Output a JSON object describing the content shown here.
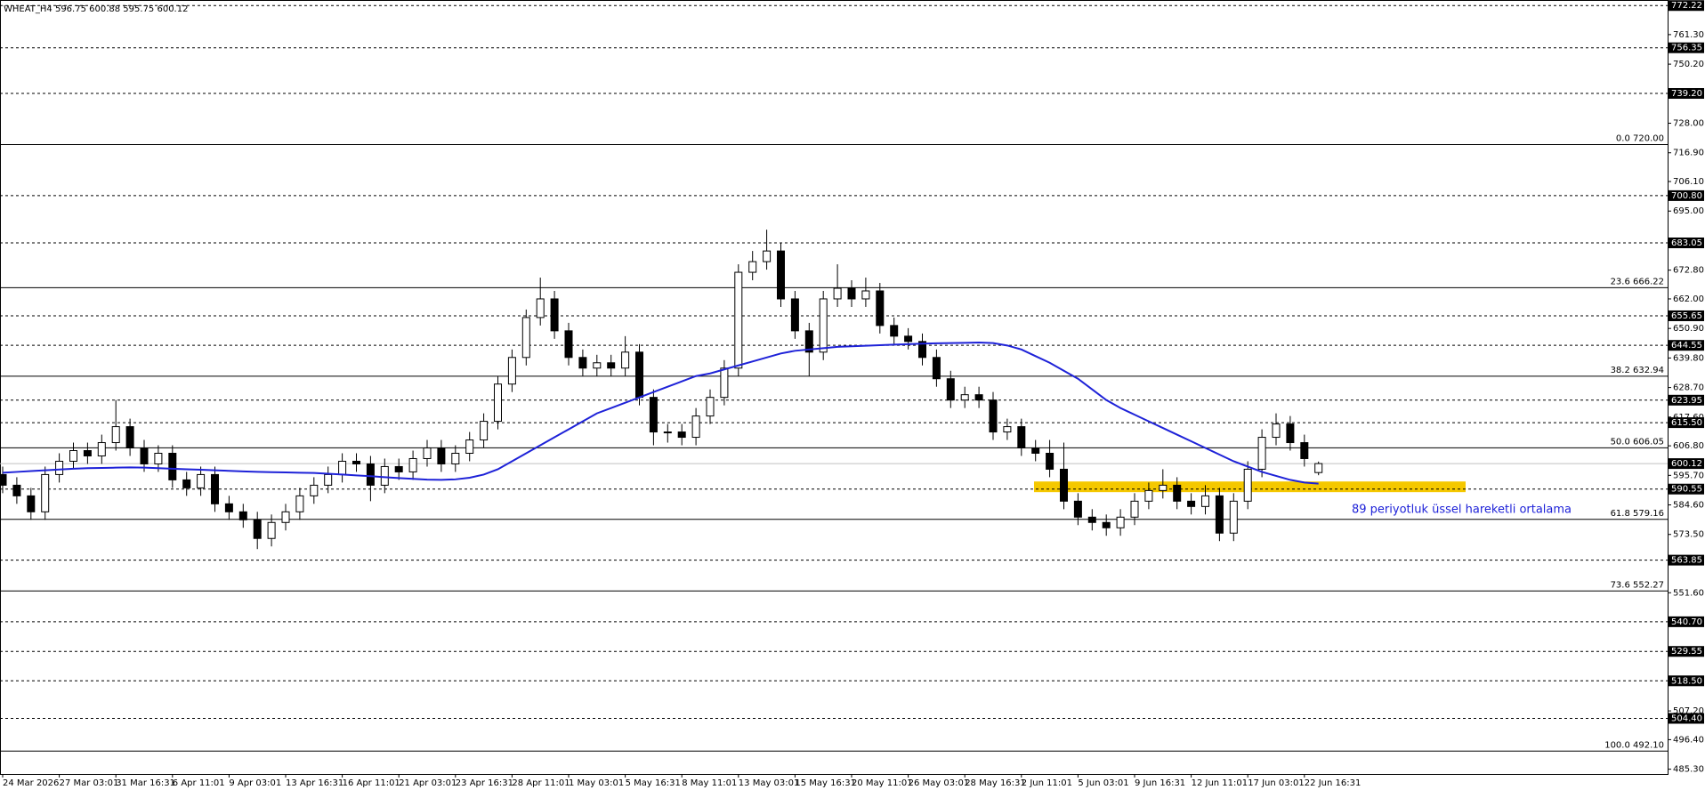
{
  "chart_data": {
    "type": "candlestick",
    "title": "WHEAT_H4  596.75 600.88 595.75 600.12",
    "annotation": "89 periyotluk üssel hareketli ortalama",
    "ylim": [
      483.5,
      774.3
    ],
    "yticks": [
      {
        "value": 485.3,
        "label": "485.30"
      },
      {
        "value": 496.4,
        "label": "496.40"
      },
      {
        "value": 507.2,
        "label": "507.20"
      },
      {
        "value": 551.6,
        "label": "551.60"
      },
      {
        "value": 573.5,
        "label": "573.50"
      },
      {
        "value": 584.6,
        "label": "584.60"
      },
      {
        "value": 595.7,
        "label": "595.70"
      },
      {
        "value": 606.8,
        "label": "606.80"
      },
      {
        "value": 617.6,
        "label": "617.60"
      },
      {
        "value": 628.7,
        "label": "628.70"
      },
      {
        "value": 639.8,
        "label": "639.80"
      },
      {
        "value": 650.9,
        "label": "650.90"
      },
      {
        "value": 662,
        "label": "662.00"
      },
      {
        "value": 672.8,
        "label": "672.80"
      },
      {
        "value": 695,
        "label": "695.00"
      },
      {
        "value": 706.1,
        "label": "706.10"
      },
      {
        "value": 716.9,
        "label": "716.90"
      },
      {
        "value": 728,
        "label": "728.00"
      },
      {
        "value": 750.2,
        "label": "750.20"
      },
      {
        "value": 761.3,
        "label": "761.30"
      }
    ],
    "hlines": [
      {
        "value": 772.22,
        "label": "772.22"
      },
      {
        "value": 756.35,
        "label": "756.35"
      },
      {
        "value": 739.2,
        "label": "739.20"
      },
      {
        "value": 700.8,
        "label": "700.80"
      },
      {
        "value": 683.05,
        "label": "683.05"
      },
      {
        "value": 655.65,
        "label": "655.65"
      },
      {
        "value": 644.55,
        "label": "644.55"
      },
      {
        "value": 623.95,
        "label": "623.95"
      },
      {
        "value": 615.5,
        "label": "615.50"
      },
      {
        "value": 590.55,
        "label": "590.55"
      },
      {
        "value": 563.85,
        "label": "563.85"
      },
      {
        "value": 540.7,
        "label": "540.70"
      },
      {
        "value": 529.55,
        "label": "529.55"
      },
      {
        "value": 518.5,
        "label": "518.50"
      },
      {
        "value": 504.4,
        "label": "504.40"
      }
    ],
    "current_price": {
      "value": 600.12,
      "label": "600.12"
    },
    "fib_levels": [
      {
        "value": 720,
        "label": "0.0 720.00"
      },
      {
        "value": 666.22,
        "label": "23.6 666.22"
      },
      {
        "value": 632.94,
        "label": "38.2 632.94"
      },
      {
        "value": 606.05,
        "label": "50.0 606.05"
      },
      {
        "value": 579.16,
        "label": "61.8 579.16"
      },
      {
        "value": 552.27,
        "label": "73.6 552.27"
      },
      {
        "value": 492.1,
        "label": "100.0 492.10"
      }
    ],
    "zone": [
      589.4,
      593.4
    ],
    "zone_color": "#f5c800",
    "ma_color": "#1e22d8",
    "categories": [
      "24 Mar 2026",
      null,
      null,
      null,
      "27 Mar 03:01",
      null,
      null,
      null,
      "31 Mar 16:31",
      null,
      null,
      null,
      "6 Apr 11:01",
      null,
      null,
      null,
      "9 Apr 03:01",
      null,
      null,
      null,
      "13 Apr 16:31",
      null,
      null,
      null,
      "16 Apr 11:01",
      null,
      null,
      null,
      "21 Apr 03:01",
      null,
      null,
      null,
      "23 Apr 16:31",
      null,
      null,
      null,
      "28 Apr 11:01",
      null,
      null,
      null,
      "1 May 03:01",
      null,
      null,
      null,
      "5 May 16:31",
      null,
      null,
      null,
      "8 May 11:01",
      null,
      null,
      null,
      "13 May 03:01",
      null,
      null,
      null,
      "15 May 16:31",
      null,
      null,
      null,
      "20 May 11:01",
      null,
      null,
      null,
      "26 May 03:01",
      null,
      null,
      null,
      "28 May 16:31",
      null,
      null,
      null,
      "2 Jun 11:01",
      null,
      null,
      null,
      "5 Jun 03:01",
      null,
      null,
      null,
      "9 Jun 16:31",
      null,
      null,
      null,
      "12 Jun 11:01",
      null,
      null,
      null,
      "17 Jun 03:01",
      null,
      null,
      null,
      "22 Jun 16:31",
      null
    ],
    "open": [
      596,
      592,
      588,
      582,
      596,
      601,
      605,
      603,
      608,
      614,
      606,
      600,
      604,
      594,
      591,
      596,
      585,
      582,
      579,
      572,
      578,
      582,
      588,
      592,
      596,
      601,
      600,
      592,
      599,
      597,
      602,
      606,
      600,
      604,
      609,
      616,
      630,
      640,
      655,
      662,
      650,
      640,
      636,
      638,
      636,
      642,
      625,
      612,
      612,
      610,
      618,
      625,
      636,
      672,
      676,
      680,
      662,
      650,
      642,
      662,
      666,
      662,
      665,
      652,
      648,
      646,
      640,
      632,
      624,
      626,
      624,
      612,
      614,
      606,
      604,
      598,
      586,
      580,
      578,
      576,
      580,
      586,
      590,
      592,
      586,
      584,
      588,
      574,
      586,
      598,
      610,
      615,
      608,
      596.75
    ],
    "high": [
      599,
      595,
      591,
      599,
      604,
      608,
      608,
      611,
      624,
      617,
      609,
      607,
      607,
      597,
      599,
      599,
      588,
      585,
      582,
      581,
      585,
      591,
      595,
      599,
      604,
      604,
      603,
      602,
      602,
      605,
      609,
      609,
      607,
      612,
      619,
      633,
      643,
      658,
      670,
      665,
      653,
      643,
      641,
      641,
      648,
      645,
      628,
      615,
      615,
      621,
      628,
      639,
      675,
      680,
      688,
      683,
      665,
      653,
      665,
      675,
      669,
      670,
      668,
      655,
      651,
      649,
      643,
      635,
      629,
      629,
      627,
      617,
      617,
      609,
      609,
      608,
      589,
      583,
      581,
      583,
      589,
      593,
      598,
      595,
      589,
      592,
      591,
      589,
      601,
      613,
      619,
      618,
      611,
      600.88
    ],
    "low": [
      589,
      585,
      579,
      579,
      593,
      598,
      600,
      600,
      605,
      603,
      597,
      597,
      591,
      588,
      588,
      582,
      579,
      576,
      568,
      569,
      575,
      579,
      585,
      589,
      593,
      597,
      586,
      589,
      594,
      594,
      599,
      597,
      597,
      601,
      606,
      613,
      627,
      637,
      652,
      647,
      637,
      633,
      633,
      633,
      633,
      622,
      607,
      608,
      607,
      607,
      615,
      622,
      633,
      669,
      673,
      659,
      647,
      633,
      639,
      659,
      659,
      659,
      649,
      645,
      643,
      637,
      629,
      621,
      621,
      621,
      609,
      609,
      603,
      601,
      595,
      583,
      577,
      575,
      573,
      573,
      577,
      583,
      587,
      583,
      581,
      581,
      571,
      571,
      583,
      595,
      607,
      605,
      599,
      595.75
    ],
    "close": [
      592,
      588,
      582,
      596,
      601,
      605,
      603,
      608,
      614,
      606,
      600,
      604,
      594,
      591,
      596,
      585,
      582,
      579,
      572,
      578,
      582,
      588,
      592,
      596,
      601,
      600,
      592,
      599,
      597,
      602,
      606,
      600,
      604,
      609,
      616,
      630,
      640,
      655,
      662,
      650,
      640,
      636,
      638,
      636,
      642,
      625,
      612,
      612,
      610,
      618,
      625,
      636,
      672,
      676,
      680,
      662,
      650,
      642,
      662,
      666,
      662,
      665,
      652,
      648,
      646,
      640,
      632,
      624,
      626,
      624,
      612,
      614,
      606,
      604,
      598,
      586,
      580,
      578,
      576,
      580,
      586,
      590,
      592,
      586,
      584,
      588,
      574,
      586,
      598,
      610,
      615,
      608,
      602,
      600.12
    ],
    "ma": [
      596.7,
      597,
      597.3,
      597.6,
      597.9,
      598.2,
      598.4,
      598.5,
      598.6,
      598.7,
      598.6,
      598.4,
      598.2,
      598,
      597.8,
      597.6,
      597.4,
      597.2,
      597,
      596.9,
      596.8,
      596.7,
      596.6,
      596.3,
      596,
      595.7,
      595.4,
      595,
      594.7,
      594.4,
      594.1,
      594,
      594.2,
      594.8,
      596,
      598,
      601,
      604,
      607,
      610,
      613,
      616,
      619,
      621,
      623,
      625,
      627,
      629,
      631,
      633,
      634,
      635.5,
      637,
      638.5,
      640,
      641.5,
      642.5,
      643,
      643.5,
      644,
      644.2,
      644.4,
      644.6,
      644.8,
      645,
      645.2,
      645.3,
      645.4,
      645.5,
      645.6,
      645.4,
      644.5,
      643,
      640.5,
      638,
      635,
      632,
      628,
      624,
      621,
      618.5,
      616,
      613.5,
      611,
      608.5,
      606,
      603.5,
      601,
      599,
      597,
      595.5,
      594,
      593,
      592.6
    ]
  }
}
